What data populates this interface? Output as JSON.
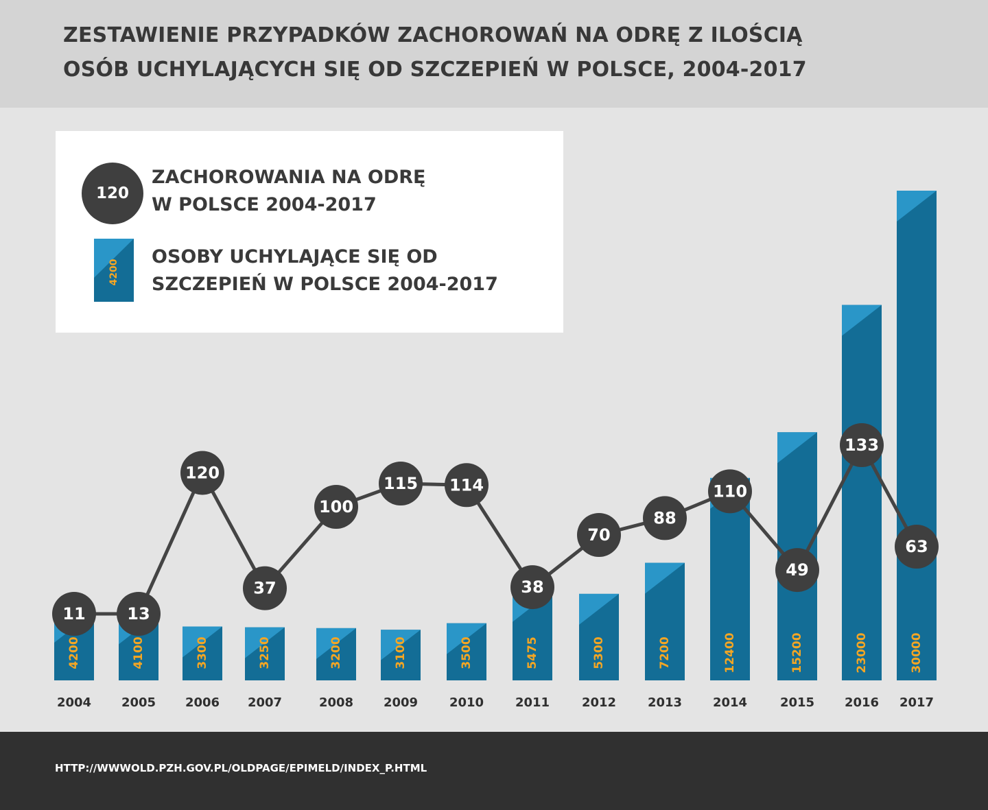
{
  "title": {
    "line1": "ZESTAWIENIE PRZYPADKÓW ZACHOROWAŃ NA ODRĘ Z ILOŚCIĄ",
    "line2": "OSÓB UCHYLAJĄCYCH SIĘ OD SZCZEPIEŃ  W POLSCE, 2004-2017"
  },
  "legend": {
    "circle_sample": "120",
    "circle_label_line1": "ZACHOROWANIA NA ODRĘ",
    "circle_label_line2": "W POLSCE 2004-2017",
    "bar_sample": "4200",
    "bar_label_line1": "OSOBY UCHYLAJĄCE SIĘ OD",
    "bar_label_line2": "SZCZEPIEŃ W POLSCE 2004-2017"
  },
  "colors": {
    "bar_dark": "#136d96",
    "bar_light": "#2a96c8",
    "bar_value": "#f5a623",
    "circle": "#3f3f3f",
    "line": "#444444"
  },
  "chart_data": {
    "type": "bar",
    "categories": [
      "2004",
      "2005",
      "2006",
      "2007",
      "2008",
      "2009",
      "2010",
      "2011",
      "2012",
      "2013",
      "2014",
      "2015",
      "2016",
      "2017"
    ],
    "series": [
      {
        "type": "bar",
        "values": [
          4200,
          4100,
          3300,
          3250,
          3200,
          3100,
          3500,
          5475,
          5300,
          7200,
          12400,
          15200,
          23000,
          30000
        ]
      },
      {
        "type": "line",
        "values": [
          11,
          13,
          120,
          37,
          100,
          115,
          114,
          38,
          70,
          88,
          110,
          49,
          133,
          63
        ]
      }
    ],
    "title": "ZESTAWIENIE PRZYPADKÓW ZACHOROWAŃ NA ODRĘ Z ILOŚCIĄ OSÓB UCHYLAJĄCYCH SIĘ OD SZCZEPIEŃ  W POLSCE, 2004-2017",
    "xlabel": "",
    "ylabel": ""
  },
  "source": "HTTP://WWWOLD.PZH.GOV.PL/OLDPAGE/EPIMELD/INDEX_P.HTML"
}
